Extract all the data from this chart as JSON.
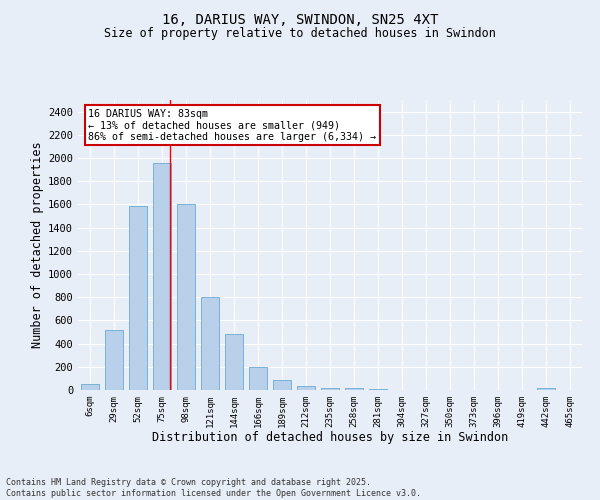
{
  "title": "16, DARIUS WAY, SWINDON, SN25 4XT",
  "subtitle": "Size of property relative to detached houses in Swindon",
  "xlabel": "Distribution of detached houses by size in Swindon",
  "ylabel": "Number of detached properties",
  "bar_color": "#b8d0ea",
  "bar_edge_color": "#6aaad4",
  "categories": [
    "6sqm",
    "29sqm",
    "52sqm",
    "75sqm",
    "98sqm",
    "121sqm",
    "144sqm",
    "166sqm",
    "189sqm",
    "212sqm",
    "235sqm",
    "258sqm",
    "281sqm",
    "304sqm",
    "327sqm",
    "350sqm",
    "373sqm",
    "396sqm",
    "419sqm",
    "442sqm",
    "465sqm"
  ],
  "values": [
    50,
    520,
    1590,
    1960,
    1600,
    800,
    480,
    200,
    85,
    35,
    20,
    15,
    10,
    2,
    2,
    2,
    2,
    2,
    2,
    20,
    2
  ],
  "ylim": [
    0,
    2500
  ],
  "yticks": [
    0,
    200,
    400,
    600,
    800,
    1000,
    1200,
    1400,
    1600,
    1800,
    2000,
    2200,
    2400
  ],
  "annotation_text": "16 DARIUS WAY: 83sqm\n← 13% of detached houses are smaller (949)\n86% of semi-detached houses are larger (6,334) →",
  "annotation_box_color": "#ffffff",
  "annotation_box_edge": "#cc0000",
  "footer_line1": "Contains HM Land Registry data © Crown copyright and database right 2025.",
  "footer_line2": "Contains public sector information licensed under the Open Government Licence v3.0.",
  "background_color": "#e8eef7",
  "grid_color": "#ffffff"
}
